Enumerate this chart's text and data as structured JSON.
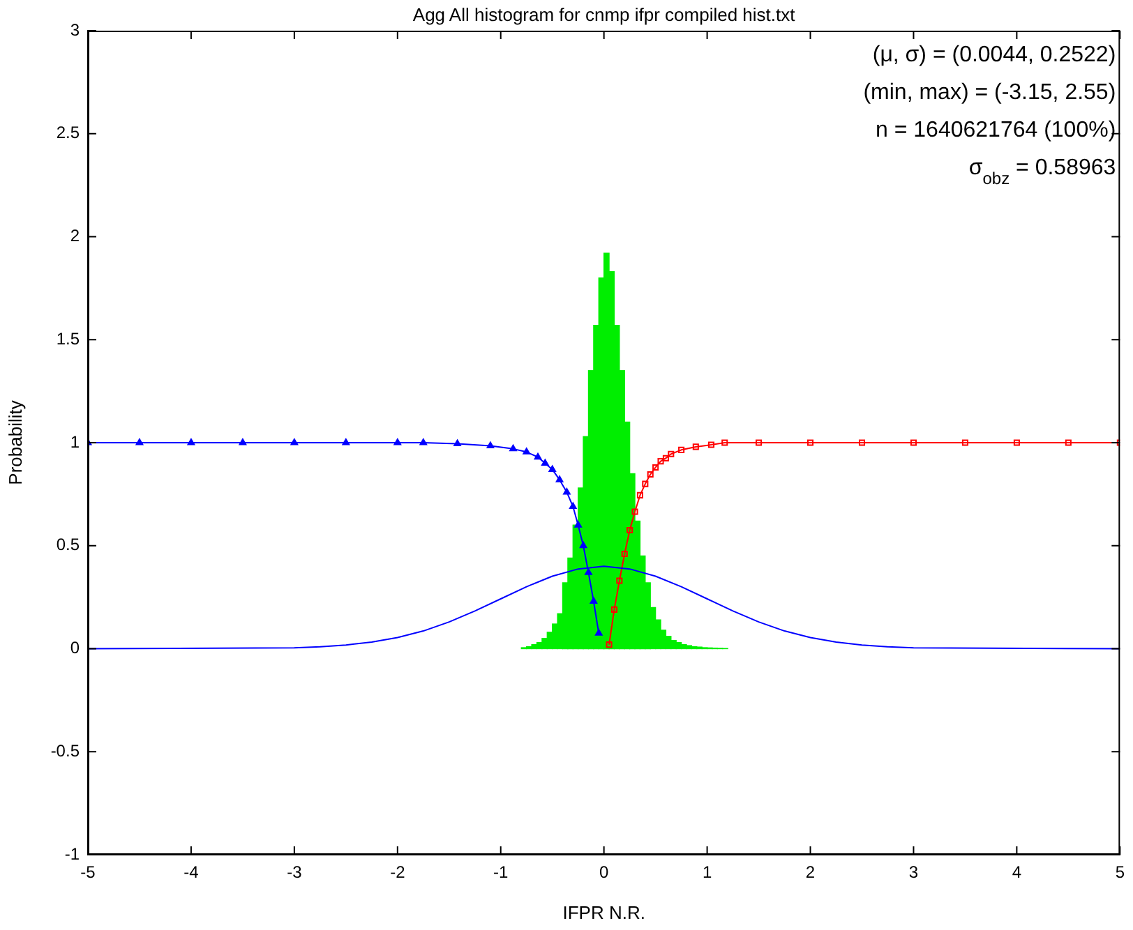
{
  "chart_data": {
    "type": "histogram",
    "title": "Agg All histogram for cnmp ifpr compiled hist.txt",
    "xlabel": "IFPR N.R.",
    "ylabel": "Probability",
    "bins": [
      -0.8,
      -0.75,
      -0.7,
      -0.65,
      -0.6,
      -0.55,
      -0.5,
      -0.45,
      -0.4,
      -0.35,
      -0.3,
      -0.25,
      -0.2,
      -0.15,
      -0.1,
      -0.05,
      0,
      0.05,
      0.1,
      0.15,
      0.2,
      0.25,
      0.3,
      0.35,
      0.4,
      0.45,
      0.5,
      0.55,
      0.6,
      0.65,
      0.7,
      0.75,
      0.8,
      0.85,
      0.9,
      0.95,
      1,
      1.05,
      1.1,
      1.15,
      1.2
    ],
    "values": [
      0.005,
      0.01,
      0.02,
      0.03,
      0.05,
      0.08,
      0.12,
      0.17,
      0.32,
      0.44,
      0.6,
      0.78,
      1.03,
      1.35,
      1.57,
      1.8,
      1.92,
      1.83,
      1.57,
      1.35,
      1.1,
      0.85,
      0.62,
      0.45,
      0.32,
      0.2,
      0.14,
      0.09,
      0.06,
      0.04,
      0.03,
      0.02,
      0.015,
      0.01,
      0.008,
      0.005,
      0.004,
      0.003,
      0.002,
      0.001
    ],
    "color": "#00ee00",
    "series": [
      {
        "type": "line",
        "color": "#0000ff",
        "marker": "none",
        "x": [
          -5,
          -3,
          -2.75,
          -2.5,
          -2.25,
          -2,
          -1.75,
          -1.5,
          -1.25,
          -1,
          -0.75,
          -0.5,
          -0.25,
          0,
          0.25,
          0.5,
          0.75,
          1,
          1.25,
          1.5,
          1.75,
          2,
          2.25,
          2.5,
          2.75,
          3,
          5
        ],
        "values": [
          0,
          0.004,
          0.009,
          0.018,
          0.032,
          0.054,
          0.086,
          0.13,
          0.183,
          0.242,
          0.301,
          0.352,
          0.387,
          0.4,
          0.387,
          0.352,
          0.301,
          0.242,
          0.183,
          0.13,
          0.086,
          0.054,
          0.032,
          0.018,
          0.009,
          0.004,
          0
        ]
      },
      {
        "type": "line",
        "color": "#0000ff",
        "marker": "triangle",
        "x": [
          -5,
          -4.5,
          -4,
          -3.5,
          -3,
          -2.5,
          -2,
          -1.75,
          -1.42,
          -1.1,
          -0.88,
          -0.75,
          -0.64,
          -0.57,
          -0.5,
          -0.43,
          -0.36,
          -0.3,
          -0.25,
          -0.2,
          -0.15,
          -0.1,
          -0.05
        ],
        "values": [
          1,
          1,
          1,
          1,
          1,
          1,
          1,
          1,
          0.995,
          0.985,
          0.97,
          0.955,
          0.93,
          0.9,
          0.87,
          0.82,
          0.76,
          0.69,
          0.6,
          0.5,
          0.37,
          0.23,
          0.075
        ]
      },
      {
        "type": "line",
        "color": "#ff0000",
        "marker": "square",
        "x": [
          0.05,
          0.1,
          0.15,
          0.2,
          0.25,
          0.3,
          0.35,
          0.4,
          0.45,
          0.5,
          0.55,
          0.6,
          0.65,
          0.75,
          0.89,
          1.04,
          1.17,
          1.5,
          2,
          2.5,
          3,
          3.5,
          4,
          4.5,
          5
        ],
        "values": [
          0.02,
          0.19,
          0.33,
          0.46,
          0.575,
          0.665,
          0.745,
          0.8,
          0.846,
          0.88,
          0.91,
          0.925,
          0.945,
          0.965,
          0.98,
          0.99,
          1,
          1,
          1,
          1,
          1,
          1,
          1,
          1,
          1
        ]
      }
    ],
    "xlim": [
      -5,
      5
    ],
    "xticks": [
      -5,
      -4,
      -3,
      -2,
      -1,
      0,
      1,
      2,
      3,
      4,
      5
    ],
    "ylim": [
      -1,
      3
    ],
    "yticks": [
      -1,
      -0.5,
      0,
      0.5,
      1,
      1.5,
      2,
      2.5,
      3
    ],
    "grid": false,
    "legend": false,
    "annotations": [
      "(μ, σ) = (0.0044, 0.2522)",
      "(min, max) = (-3.15, 2.55)",
      "n = 1640621764 (100%)",
      "σ$_{obz}$ = 0.58963"
    ]
  }
}
